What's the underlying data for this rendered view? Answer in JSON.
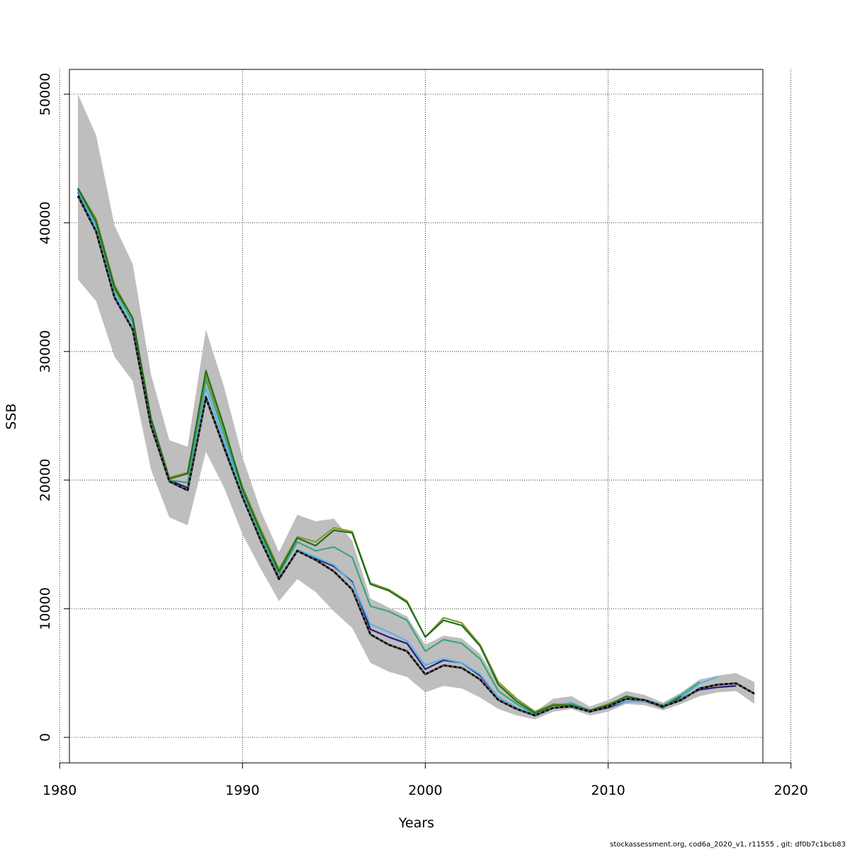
{
  "chart_data": {
    "type": "line",
    "title": "",
    "xlabel": "Years",
    "ylabel": "SSB",
    "xlim": [
      1980,
      2020
    ],
    "ylim": [
      0,
      50000
    ],
    "x_ticks": [
      1980,
      1990,
      2000,
      2010,
      2020
    ],
    "y_ticks": [
      0,
      10000,
      20000,
      30000,
      40000,
      50000
    ],
    "grid": true,
    "colors": {
      "band": "#bebebe",
      "main_line": "#000000",
      "retro_1": "#2b1b7a",
      "retro_2": "#56b4e9",
      "retro_3": "#3aa57f",
      "retro_4": "#1f6e1f",
      "retro_5": "#8a9a2a"
    },
    "band": {
      "x": [
        1981,
        1982,
        1983,
        1984,
        1985,
        1986,
        1987,
        1988,
        1989,
        1990,
        1991,
        1992,
        1993,
        1994,
        1995,
        1996,
        1997,
        1998,
        1999,
        2000,
        2001,
        2002,
        2003,
        2004,
        2005,
        2006,
        2007,
        2008,
        2009,
        2010,
        2011,
        2012,
        2013,
        2014,
        2015,
        2016,
        2017,
        2018
      ],
      "upper": [
        50000,
        46800,
        39800,
        36800,
        28200,
        23100,
        22600,
        31700,
        27200,
        21800,
        17600,
        14400,
        17300,
        16800,
        17000,
        15300,
        10800,
        10100,
        9400,
        7200,
        7900,
        7700,
        6500,
        4200,
        3000,
        2000,
        3000,
        3200,
        2400,
        2900,
        3600,
        3300,
        2700,
        3500,
        4500,
        4800,
        5000,
        4300
      ],
      "lower": [
        35600,
        33900,
        29600,
        27700,
        20800,
        17100,
        16500,
        22200,
        19400,
        15800,
        13100,
        10600,
        12300,
        11300,
        9800,
        8500,
        5800,
        5100,
        4700,
        3500,
        4000,
        3800,
        3100,
        2200,
        1700,
        1400,
        2000,
        2200,
        1700,
        2000,
        2600,
        2500,
        2100,
        2600,
        3200,
        3500,
        3600,
        2600
      ]
    },
    "series": [
      {
        "key": "main",
        "x": [
          1981,
          1982,
          1983,
          1984,
          1985,
          1986,
          1987,
          1988,
          1989,
          1990,
          1991,
          1992,
          1993,
          1994,
          1995,
          1996,
          1997,
          1998,
          1999,
          2000,
          2001,
          2002,
          2003,
          2004,
          2005,
          2006,
          2007,
          2008,
          2009,
          2010,
          2011,
          2012,
          2013,
          2014,
          2015,
          2016,
          2017,
          2018
        ],
        "values": [
          42100,
          39300,
          34200,
          31700,
          24200,
          19900,
          19200,
          26400,
          22500,
          18700,
          15300,
          12300,
          14500,
          13800,
          12900,
          11500,
          8000,
          7200,
          6700,
          4900,
          5600,
          5400,
          4500,
          2900,
          2200,
          1700,
          2300,
          2400,
          2000,
          2400,
          3000,
          2900,
          2400,
          2900,
          3800,
          4100,
          4200,
          3400
        ]
      },
      {
        "key": "retro_1",
        "x": [
          1981,
          1982,
          1983,
          1984,
          1985,
          1986,
          1987,
          1988,
          1989,
          1990,
          1991,
          1992,
          1993,
          1994,
          1995,
          1996,
          1997,
          1998,
          1999,
          2000,
          2001,
          2002,
          2003,
          2004,
          2005,
          2006,
          2007,
          2008,
          2009,
          2010,
          2011,
          2012,
          2013,
          2014,
          2015,
          2016,
          2017
        ],
        "values": [
          42400,
          39500,
          34300,
          31800,
          24300,
          20000,
          19400,
          26500,
          22600,
          18800,
          15400,
          12400,
          14500,
          13900,
          13300,
          12100,
          8400,
          7800,
          7300,
          5300,
          6000,
          5800,
          4800,
          3100,
          2300,
          1700,
          2300,
          2400,
          2000,
          2300,
          2800,
          2800,
          2400,
          3000,
          3700,
          3900,
          4000
        ]
      },
      {
        "key": "retro_2",
        "x": [
          1981,
          1982,
          1983,
          1984,
          1985,
          1986,
          1987,
          1988,
          1989,
          1990,
          1991,
          1992,
          1993,
          1994,
          1995,
          1996,
          1997,
          1998,
          1999,
          2000,
          2001,
          2002,
          2003,
          2004,
          2005,
          2006,
          2007,
          2008,
          2009,
          2010,
          2011,
          2012,
          2013,
          2014,
          2015,
          2016
        ],
        "values": [
          42500,
          39600,
          34500,
          31900,
          24400,
          20000,
          19800,
          27200,
          23000,
          19000,
          15500,
          12300,
          14600,
          14000,
          13400,
          12000,
          8800,
          8200,
          7500,
          5600,
          6100,
          5800,
          4900,
          3100,
          2300,
          1800,
          2500,
          2700,
          2100,
          2400,
          2800,
          2800,
          2500,
          3100,
          4200,
          4700
        ]
      },
      {
        "key": "retro_3",
        "x": [
          1981,
          1982,
          1983,
          1984,
          1985,
          1986,
          1987,
          1988,
          1989,
          1990,
          1991,
          1992,
          1993,
          1994,
          1995,
          1996,
          1997,
          1998,
          1999,
          2000,
          2001,
          2002,
          2003,
          2004,
          2005,
          2006,
          2007,
          2008,
          2009,
          2010,
          2011,
          2012,
          2013,
          2014,
          2015
        ],
        "values": [
          42600,
          39900,
          34800,
          32300,
          24600,
          20000,
          19800,
          27800,
          23500,
          19200,
          15700,
          12700,
          15200,
          14500,
          14800,
          14000,
          10200,
          9800,
          9100,
          6700,
          7600,
          7300,
          6100,
          3600,
          2600,
          1800,
          2500,
          2600,
          2100,
          2500,
          3000,
          2900,
          2500,
          3300,
          4300
        ]
      },
      {
        "key": "retro_4",
        "x": [
          1981,
          1982,
          1983,
          1984,
          1985,
          1986,
          1987,
          1988,
          1989,
          1990,
          1991,
          1992,
          1993,
          1994,
          1995,
          1996,
          1997,
          1998,
          1999,
          2000,
          2001,
          2002,
          2003,
          2004,
          2005,
          2006,
          2007,
          2008,
          2009,
          2010,
          2011,
          2012,
          2013,
          2014
        ],
        "values": [
          42700,
          40100,
          35000,
          32600,
          24800,
          20100,
          20500,
          28500,
          24100,
          19300,
          16000,
          12900,
          15500,
          14900,
          16100,
          15900,
          11900,
          11400,
          10500,
          7800,
          9100,
          8700,
          7100,
          4100,
          2800,
          1900,
          2500,
          2500,
          2100,
          2500,
          3200,
          2900,
          2300,
          3200
        ]
      },
      {
        "key": "retro_5",
        "x": [
          1981,
          1982,
          1983,
          1984,
          1985,
          1986,
          1987,
          1988,
          1989,
          1990,
          1991,
          1992,
          1993,
          1994,
          1995,
          1996,
          1997,
          1998,
          1999,
          2000,
          2001,
          2002,
          2003,
          2004,
          2005,
          2006,
          2007,
          2008,
          2009,
          2010,
          2011,
          2012,
          2013
        ],
        "values": [
          42700,
          40300,
          35200,
          32600,
          24800,
          20200,
          20600,
          28100,
          23900,
          19500,
          16200,
          13100,
          15600,
          15200,
          16300,
          16000,
          12000,
          11500,
          10600,
          7800,
          9300,
          8900,
          7200,
          4300,
          3000,
          2000,
          2600,
          2500,
          2100,
          2600,
          3100,
          2900,
          2300
        ]
      }
    ]
  },
  "footer": {
    "note": "stockassessment.org, cod6a_2020_v1, r11555 , git: df0b7c1bcb83"
  }
}
